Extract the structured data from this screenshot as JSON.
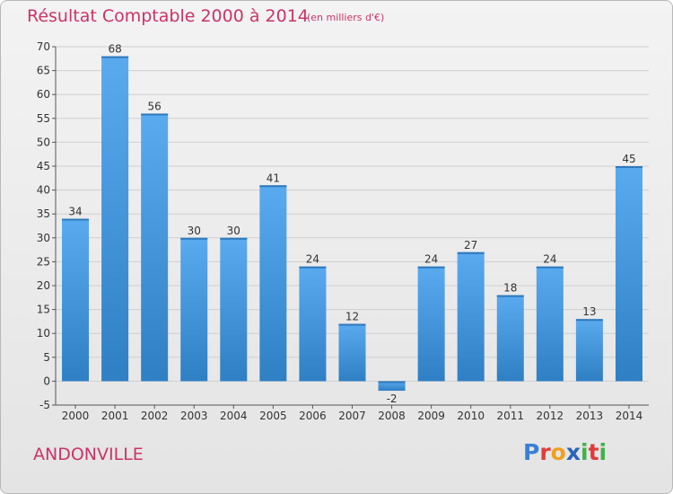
{
  "title": "Résultat Comptable 2000 à 2014",
  "subtitle": "(en milliers d'€)",
  "commune": "ANDONVILLE",
  "logo": {
    "text": "Proxiti",
    "letters": [
      "P",
      "r",
      "o",
      "x",
      "i",
      "t",
      "i"
    ],
    "colors": [
      "#3a7fd5",
      "#e23b3b",
      "#f0a020",
      "#2a63b8",
      "#3fb24a",
      "#e23b3b",
      "#3fb24a"
    ]
  },
  "colors": {
    "title": "#cc3366",
    "bar": "#3c8fd8",
    "grid": "#cfcfcf",
    "axis": "#555555"
  },
  "chart_data": {
    "type": "bar",
    "categories": [
      "2000",
      "2001",
      "2002",
      "2003",
      "2004",
      "2005",
      "2006",
      "2007",
      "2008",
      "2009",
      "2010",
      "2011",
      "2012",
      "2013",
      "2014"
    ],
    "values": [
      34,
      68,
      56,
      30,
      30,
      41,
      24,
      12,
      -2,
      24,
      27,
      18,
      24,
      13,
      45
    ],
    "ylim": [
      -5,
      70
    ],
    "yticks": [
      -5,
      0,
      5,
      10,
      15,
      20,
      25,
      30,
      35,
      40,
      45,
      50,
      55,
      60,
      65,
      70
    ],
    "grid": true,
    "legend": "none",
    "data_labels": true
  }
}
